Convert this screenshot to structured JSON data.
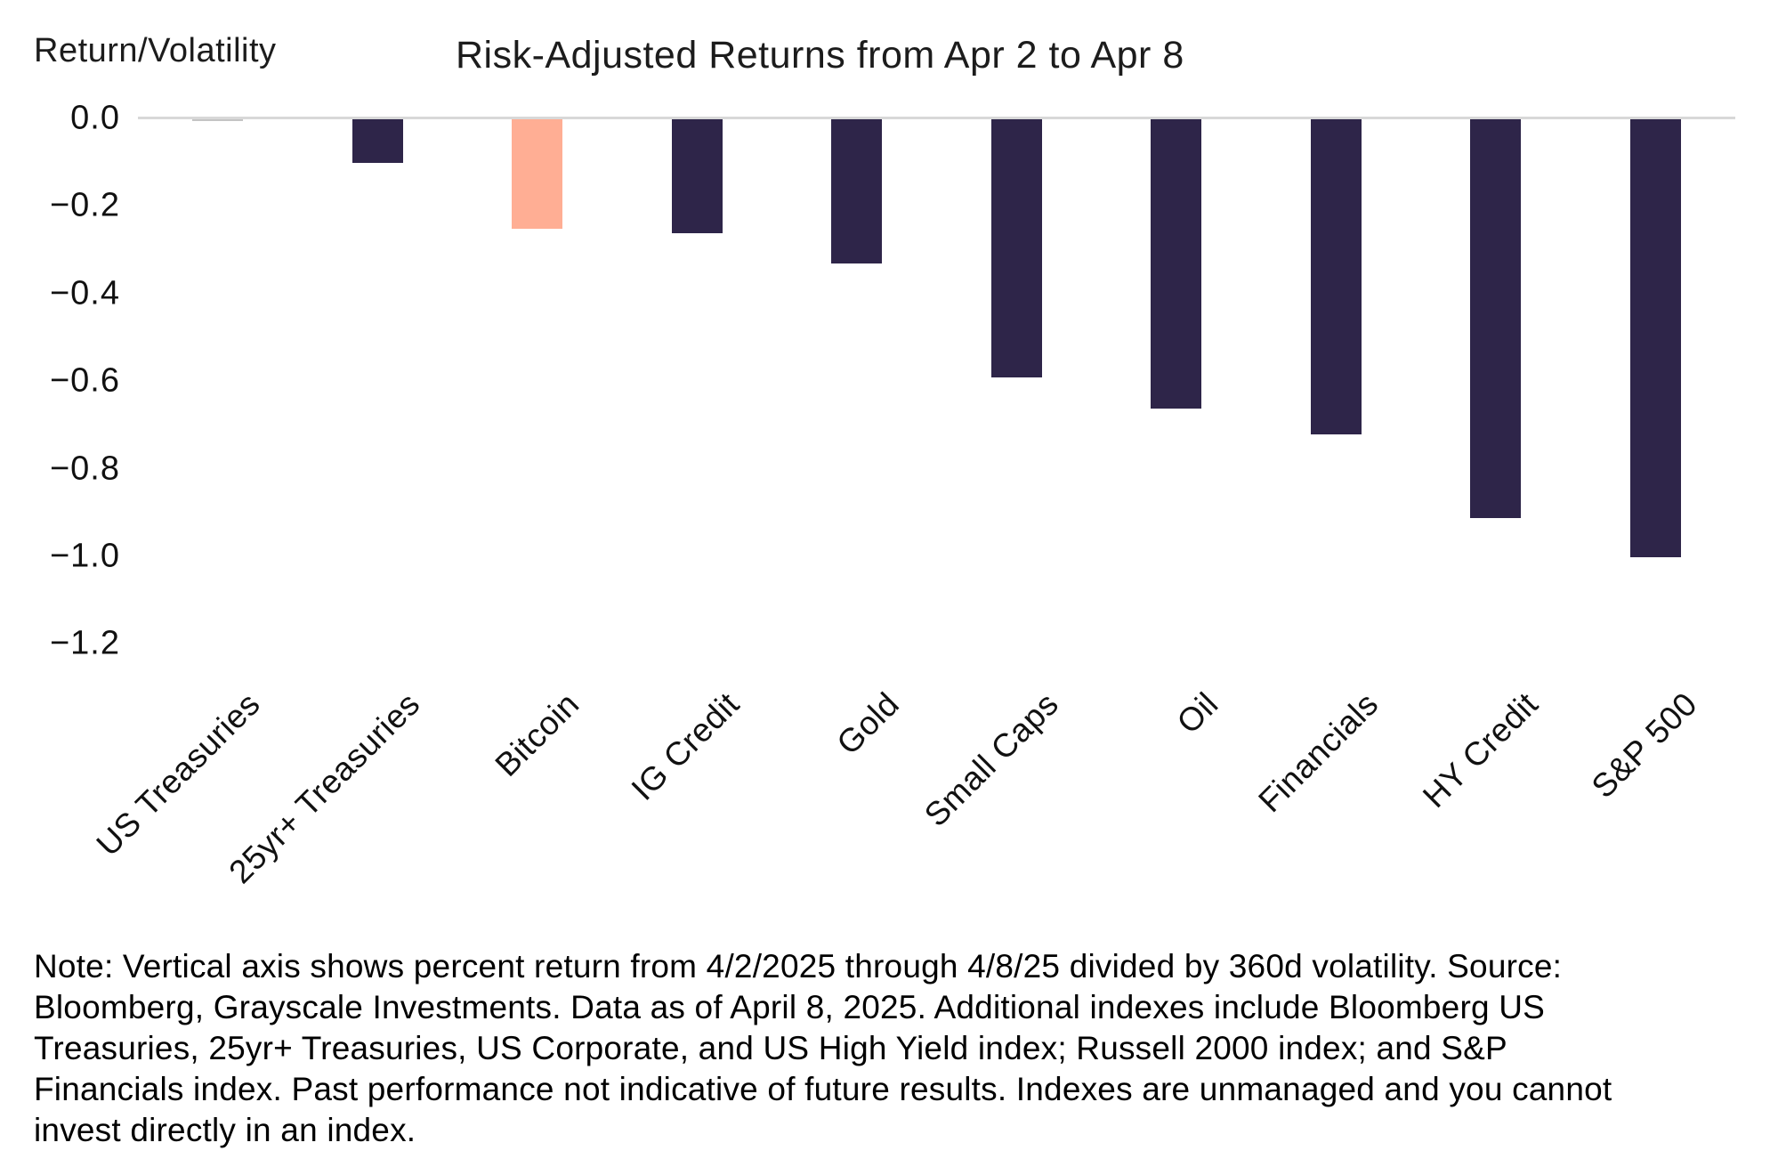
{
  "chart": {
    "y_axis_title": "Return/Volatility",
    "title": "Risk-Adjusted Returns from Apr 2 to Apr 8"
  },
  "chart_data": {
    "type": "bar",
    "title": "Risk-Adjusted Returns from Apr 2 to Apr 8",
    "ylabel": "Return/Volatility",
    "xlabel": "",
    "categories": [
      "US Treasuries",
      "25yr+ Treasuries",
      "Bitcoin",
      "IG Credit",
      "Gold",
      "Small Caps",
      "Oil",
      "Financials",
      "HY Credit",
      "S&P 500"
    ],
    "values": [
      -0.005,
      -0.1,
      -0.25,
      -0.26,
      -0.33,
      -0.59,
      -0.66,
      -0.72,
      -0.91,
      -1.0
    ],
    "bar_colors": [
      "#c4c4c4",
      "#2e2549",
      "#ffae94",
      "#2e2549",
      "#2e2549",
      "#2e2549",
      "#2e2549",
      "#2e2549",
      "#2e2549",
      "#2e2549"
    ],
    "default_bar_color": "#2e2549",
    "highlighted_category": "Bitcoin",
    "highlight_color": "#ffae94",
    "ylim": [
      -1.2,
      0.0
    ],
    "yticks": [
      0.0,
      -0.2,
      -0.4,
      -0.6,
      -0.8,
      -1.0,
      -1.2
    ],
    "ytick_labels": [
      "0.0",
      "−0.2",
      "−0.4",
      "−0.6",
      "−0.8",
      "−1.0",
      "−1.2"
    ],
    "grid": false,
    "legend_position": "none",
    "axis_line_color": "#d8d8d8"
  },
  "note": {
    "lines": [
      "Note: Vertical axis shows percent return from 4/2/2025 through 4/8/25 divided by 360d volatility. Source:",
      "Bloomberg, Grayscale Investments. Data as of April 8, 2025. Additional indexes include Bloomberg US",
      "Treasuries, 25yr+ Treasuries, US Corporate, and US High Yield index; Russell 2000 index; and S&P",
      "Financials index. Past performance not indicative of future results. Indexes are unmanaged and you cannot",
      "invest directly in an index."
    ],
    "full_text": "Note: Vertical axis shows percent return from 4/2/2025 through 4/8/25 divided by 360d volatility. Source: Bloomberg, Grayscale Investments. Data as of April 8, 2025. Additional indexes include Bloomberg US Treasuries, 25yr+ Treasuries, US Corporate, and US High Yield index; Russell 2000 index; and S&P Financials index. Past performance not indicative of future results. Indexes are unmanaged and you cannot invest directly in an index."
  }
}
